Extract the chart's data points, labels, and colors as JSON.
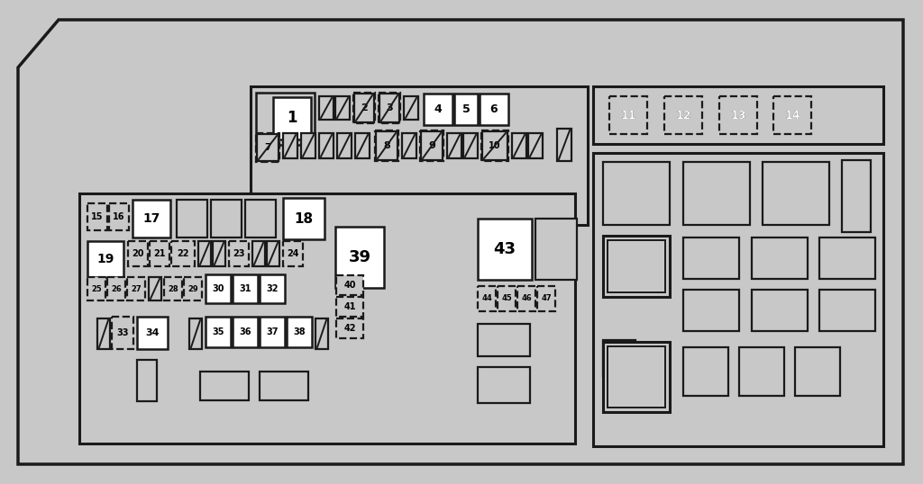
{
  "bg": "#c8c8c8",
  "bl": "#1a1a1a",
  "wh": "#ffffff"
}
